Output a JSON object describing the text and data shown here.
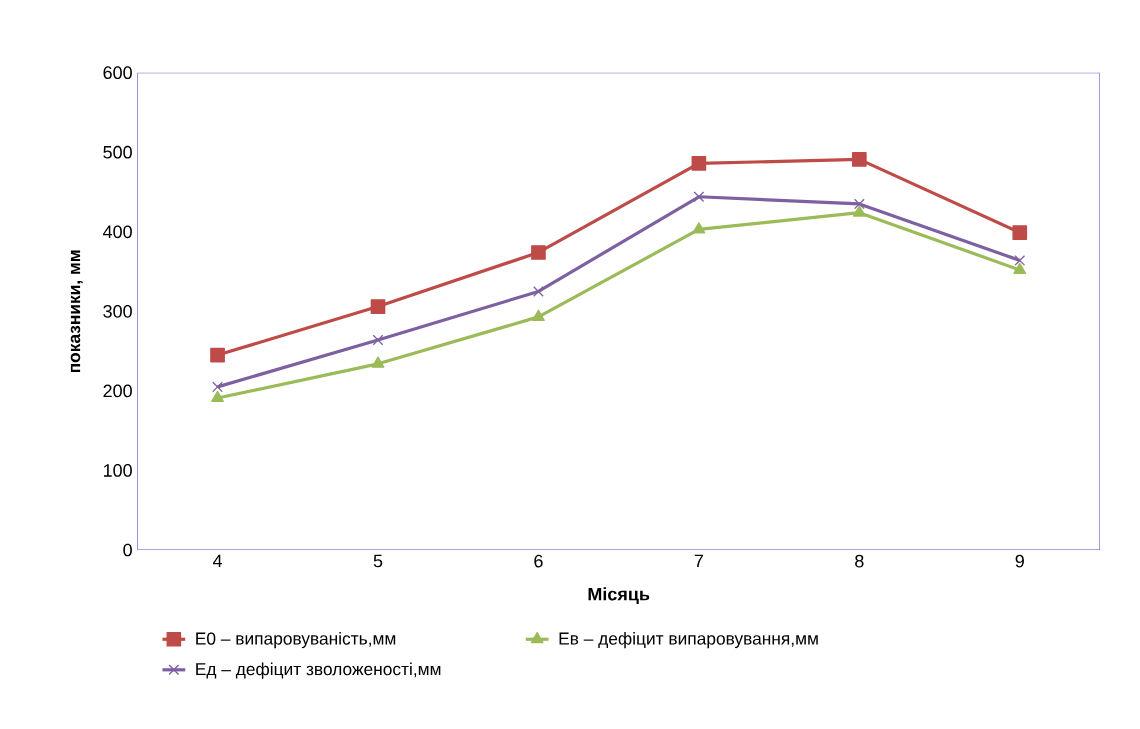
{
  "chart_data": {
    "type": "line",
    "xlabel": "Місяць",
    "ylabel": "показники, мм",
    "categories": [
      "4",
      "5",
      "6",
      "7",
      "8",
      "9"
    ],
    "series": [
      {
        "name": "E0 – випаровуваність,мм",
        "color": "#be4b48",
        "marker": "square",
        "values": [
          245,
          306,
          374,
          486,
          491,
          399
        ]
      },
      {
        "name": "Eв – дефіцит випаровування,мм",
        "color": "#9bbb59",
        "marker": "triangle",
        "values": [
          191,
          234,
          293,
          403,
          424,
          352
        ]
      },
      {
        "name": "Eд – дефіцит зволоженості,мм",
        "color": "#7d60a0",
        "marker": "cross",
        "values": [
          205,
          264,
          325,
          444,
          435,
          364
        ]
      }
    ],
    "ylim": [
      0,
      600
    ],
    "yticks": [
      0,
      100,
      200,
      300,
      400,
      500,
      600
    ],
    "grid": false,
    "legend": "bottom",
    "line_style": "solid"
  }
}
